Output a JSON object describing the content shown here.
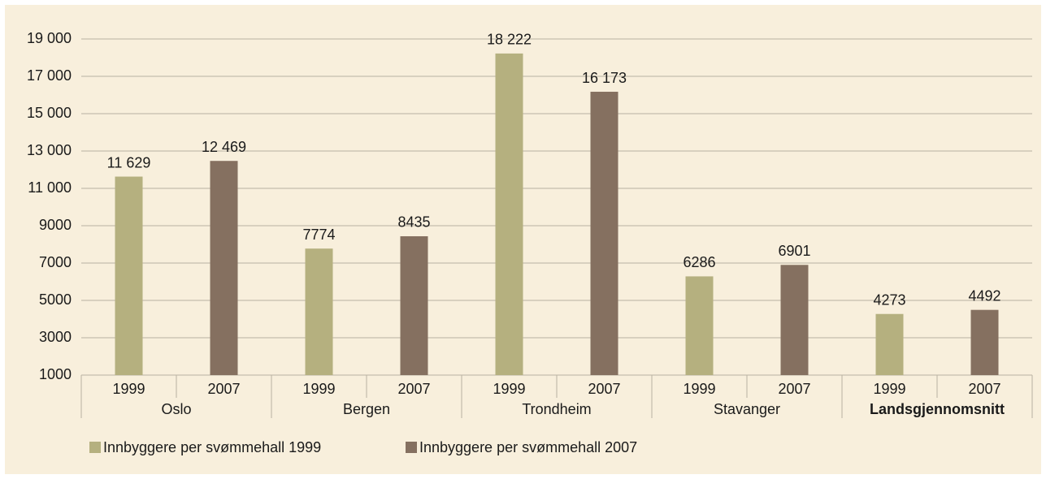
{
  "chart_data": {
    "type": "bar",
    "groups": [
      "Oslo",
      "Bergen",
      "Trondheim",
      "Stavanger",
      "Landsgjennomsnitt"
    ],
    "subcategories": [
      "1999",
      "2007"
    ],
    "series": [
      {
        "name": "Innbyggere per svømmehall 1999",
        "color": "#b5b07f",
        "values": [
          11629,
          7774,
          18222,
          6286,
          4273
        ],
        "value_labels": [
          "11 629",
          "7774",
          "18 222",
          "6286",
          "4273"
        ]
      },
      {
        "name": "Innbyggere per svømmehall 2007",
        "color": "#857060",
        "values": [
          12469,
          8435,
          16173,
          6901,
          4492
        ],
        "value_labels": [
          "12 469",
          "8435",
          "16 173",
          "6901",
          "4492"
        ]
      }
    ],
    "ylim": [
      1000,
      19000
    ],
    "yticks": [
      1000,
      3000,
      5000,
      7000,
      9000,
      {
        "value": 11000,
        "label": "11 000"
      },
      {
        "value": 13000,
        "label": "13 000"
      },
      {
        "value": 15000,
        "label": "15 000"
      },
      {
        "value": 17000,
        "label": "17 000"
      },
      {
        "value": 19000,
        "label": "19 000"
      }
    ],
    "grid": true
  }
}
